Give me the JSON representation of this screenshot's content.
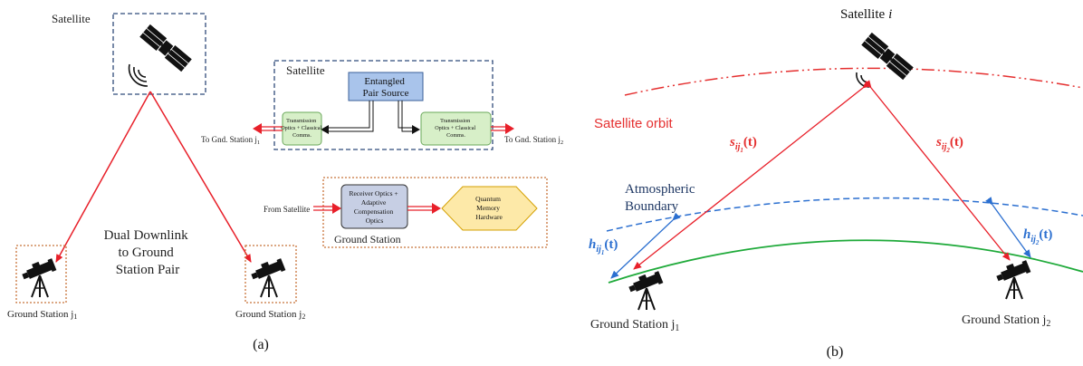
{
  "panel_a": {
    "satellite_label": "Satellite",
    "inset_satellite_label": "Satellite",
    "source_line1": "Entangled",
    "source_line2": "Pair Source",
    "tx_line1": "Transmission",
    "tx_line2": "Optics + Classical",
    "tx_line3": "Comms.",
    "to_gnd_left": "To Gnd. Station j",
    "to_gnd_left_sub": "1",
    "to_gnd_right": "To Gnd. Station j",
    "to_gnd_right_sub": "2",
    "from_satellite": "From Satellite",
    "rx_line1": "Receiver Optics +",
    "rx_line2": "Adaptive",
    "rx_line3": "Compensation",
    "rx_line4": "Optics",
    "qm_line1": "Quantum",
    "qm_line2": "Memory",
    "qm_line3": "Hardware",
    "inset_ground_label": "Ground Station",
    "center_line1": "Dual Downlink",
    "center_line2": "to Ground",
    "center_line3": "Station Pair",
    "gs1_label": "Ground Station j",
    "gs1_sub": "1",
    "gs2_label": "Ground Station j",
    "gs2_sub": "2",
    "caption": "(a)"
  },
  "panel_b": {
    "satellite_label": "Satellite",
    "satellite_index": "i",
    "orbit_label": "Satellite orbit",
    "atmo_line1": "Atmospheric",
    "atmo_line2": "Boundary",
    "s1_main": "s",
    "s1_sub": "ij",
    "s1_subsub": "1",
    "s1_arg": "(t)",
    "s2_main": "s",
    "s2_sub": "ij",
    "s2_subsub": "2",
    "s2_arg": "(t)",
    "h1_main": "h",
    "h1_sub": "ij",
    "h1_subsub": "1",
    "h1_arg": "(t)",
    "h2_main": "h",
    "h2_sub": "ij",
    "h2_subsub": "2",
    "h2_arg": "(t)",
    "gs1_label": "Ground Station j",
    "gs1_sub": "1",
    "gs2_label": "Ground Station j",
    "gs2_sub": "2",
    "caption": "(b)"
  },
  "colors": {
    "link_red": "#e8202a",
    "orbit_red": "#e53030",
    "atmo_blue": "#2b6fd0",
    "ground_green": "#1faa3a",
    "label_navy": "#1f3864",
    "dashed_navy": "#2f4a7a",
    "dotted_orange": "#c8733a",
    "source_fill": "#a9c4eb",
    "tx_fill": "#d7efc8",
    "rx_fill": "#c7cfe4",
    "qm_fill": "#fde9a8"
  }
}
